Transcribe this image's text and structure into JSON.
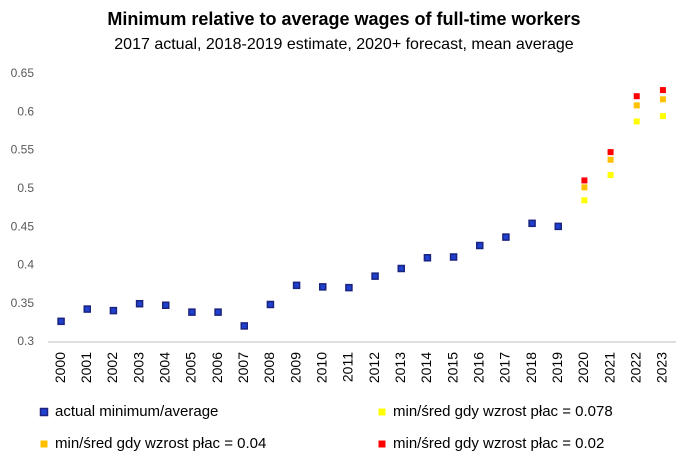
{
  "chart_data": {
    "type": "scatter",
    "title": "Minimum relative to average wages of full-time workers",
    "subtitle": "2017 actual, 2018-2019 estimate, 2020+ forecast, mean average",
    "categories": [
      "2000",
      "2001",
      "2002",
      "2003",
      "2004",
      "2005",
      "2006",
      "2007",
      "2008",
      "2009",
      "2010",
      "2011",
      "2012",
      "2013",
      "2014",
      "2015",
      "2016",
      "2017",
      "2018",
      "2019",
      "2020",
      "2021",
      "2022",
      "2023"
    ],
    "series": [
      {
        "name": "actual minimum/average",
        "color": "#2040d0",
        "values": [
          0.327,
          0.343,
          0.341,
          0.35,
          0.348,
          0.339,
          0.339,
          0.321,
          0.349,
          0.374,
          0.372,
          0.371,
          0.386,
          0.396,
          0.41,
          0.411,
          0.426,
          0.437,
          0.455,
          0.451,
          null,
          null,
          null,
          null
        ]
      },
      {
        "name": "min/śred gdy wzrost płac = 0.078",
        "color": "#ffff00",
        "values": [
          null,
          null,
          null,
          null,
          null,
          null,
          null,
          null,
          null,
          null,
          null,
          null,
          null,
          null,
          null,
          null,
          null,
          null,
          null,
          null,
          0.485,
          0.518,
          0.588,
          0.595
        ]
      },
      {
        "name": "min/śred gdy wzrost płac = 0.04",
        "color": "#ffc000",
        "values": [
          null,
          null,
          null,
          null,
          null,
          null,
          null,
          null,
          null,
          null,
          null,
          null,
          null,
          null,
          null,
          null,
          null,
          null,
          null,
          null,
          0.502,
          0.538,
          0.609,
          0.617
        ]
      },
      {
        "name": "min/śred gdy wzrost płac = 0.02",
        "color": "#ff0000",
        "values": [
          null,
          null,
          null,
          null,
          null,
          null,
          null,
          null,
          null,
          null,
          null,
          null,
          null,
          null,
          null,
          null,
          null,
          null,
          null,
          null,
          0.511,
          0.548,
          0.621,
          0.629
        ]
      }
    ],
    "ylim": [
      0.3,
      0.65
    ],
    "yticks": [
      0.3,
      0.35,
      0.4,
      0.45,
      0.5,
      0.55,
      0.6,
      0.65
    ],
    "grid": false,
    "legend": "bottom"
  }
}
